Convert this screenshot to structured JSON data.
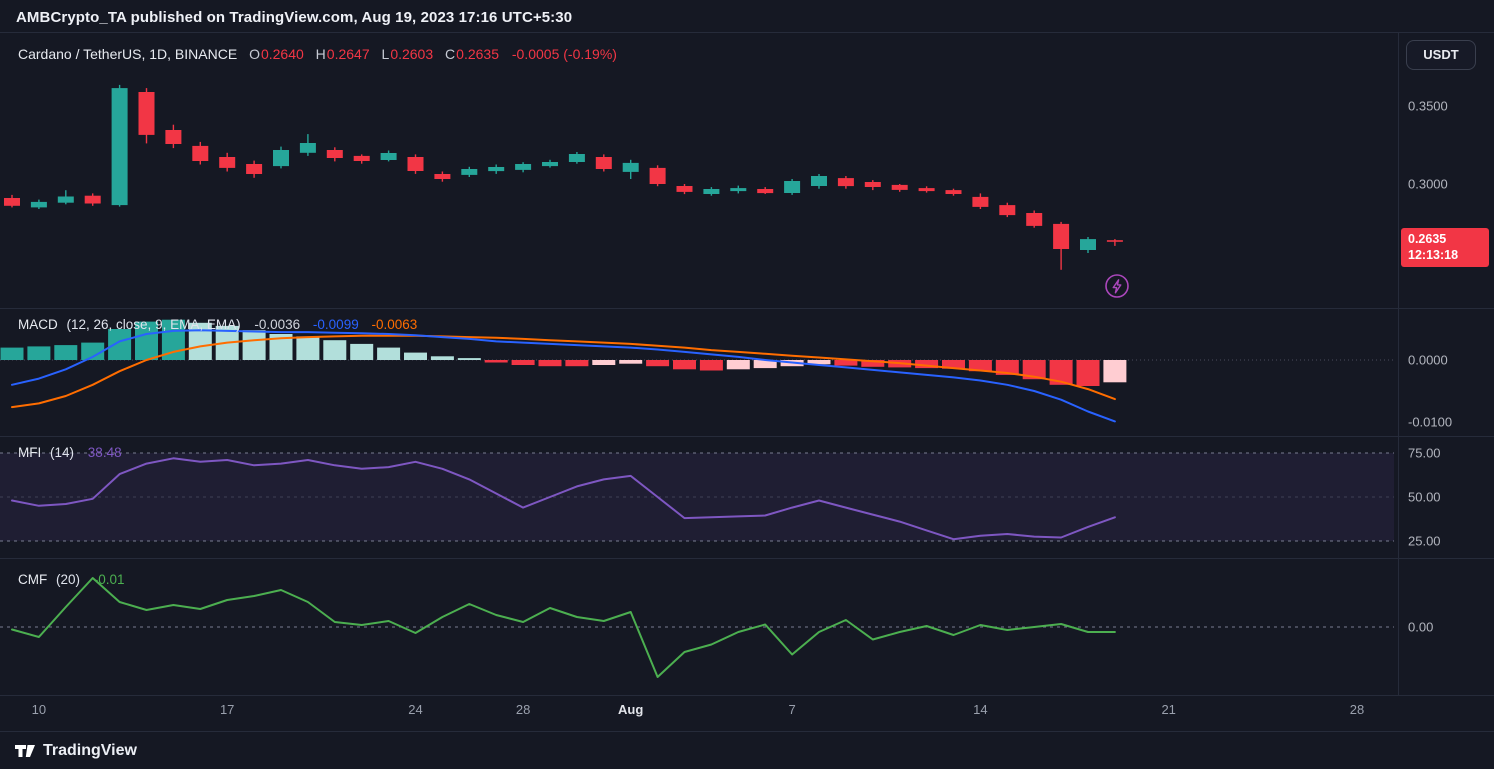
{
  "header": {
    "title": "AMBCrypto_TA published on TradingView.com, Aug 19, 2023 17:16 UTC+5:30"
  },
  "toolbar": {
    "currency_label": "USDT"
  },
  "footer": {
    "brand": "TradingView"
  },
  "colors": {
    "background": "#151823",
    "up": "#26a69a",
    "down": "#f23645",
    "macd_line": "#2962ff",
    "signal_line": "#ff6d00",
    "hist_above_rising": "#26a69a",
    "hist_above_falling": "#b2dfdb",
    "hist_below_falling": "#f23645",
    "hist_below_rising": "#ffcdd2",
    "mfi_line": "#7e57c2",
    "mfi_band": "#7e57c2",
    "cmf_line": "#4caf50",
    "badge_bg": "#f23645",
    "boost_icon": "#ab47bc",
    "axis_text": "#b2b5be",
    "grid_dash": "#8b8fa3"
  },
  "chart_data": [
    {
      "type": "candlestick",
      "title": "Cardano / TetherUS, 1D, BINANCE",
      "ohlc_labels": {
        "o": "O",
        "h": "H",
        "l": "L",
        "c": "C"
      },
      "ohlc_display": {
        "o": "0.2640",
        "h": "0.2647",
        "l": "0.2603",
        "c": "0.2635",
        "change": "-0.0005 (-0.19%)"
      },
      "y_ticks": [
        {
          "value": 0.35,
          "label": "0.3500"
        },
        {
          "value": 0.3,
          "label": "0.3000"
        }
      ],
      "last_price": {
        "value": 0.2635,
        "label": "0.2635",
        "countdown": "12:13:18"
      },
      "x_ticks": [
        {
          "label": "10",
          "index": 1
        },
        {
          "label": "17",
          "index": 8
        },
        {
          "label": "24",
          "index": 15
        },
        {
          "label": "28",
          "index": 19
        },
        {
          "label": "Aug",
          "index": 23,
          "emphasis": true
        },
        {
          "label": "7",
          "index": 29
        },
        {
          "label": "14",
          "index": 36
        },
        {
          "label": "21",
          "index": 43
        },
        {
          "label": "28",
          "index": 50
        }
      ],
      "candles_ohlc": [
        [
          0.291,
          0.293,
          0.285,
          0.286
        ],
        [
          0.285,
          0.29,
          0.284,
          0.2885
        ],
        [
          0.288,
          0.296,
          0.287,
          0.292
        ],
        [
          0.2925,
          0.294,
          0.286,
          0.2875
        ],
        [
          0.2865,
          0.3635,
          0.2855,
          0.3615
        ],
        [
          0.359,
          0.3615,
          0.326,
          0.3315
        ],
        [
          0.3346,
          0.338,
          0.323,
          0.3256
        ],
        [
          0.3244,
          0.327,
          0.3125,
          0.3147
        ],
        [
          0.3173,
          0.32,
          0.308,
          0.3103
        ],
        [
          0.3128,
          0.315,
          0.304,
          0.3064
        ],
        [
          0.3115,
          0.324,
          0.31,
          0.3218
        ],
        [
          0.32,
          0.332,
          0.318,
          0.3263
        ],
        [
          0.3218,
          0.3235,
          0.3145,
          0.3167
        ],
        [
          0.318,
          0.319,
          0.313,
          0.3147
        ],
        [
          0.3154,
          0.3215,
          0.3145,
          0.3199
        ],
        [
          0.3173,
          0.319,
          0.3065,
          0.3083
        ],
        [
          0.3064,
          0.308,
          0.3015,
          0.3032
        ],
        [
          0.3058,
          0.311,
          0.3045,
          0.3096
        ],
        [
          0.3083,
          0.3125,
          0.3065,
          0.3109
        ],
        [
          0.309,
          0.314,
          0.3075,
          0.3128
        ],
        [
          0.3115,
          0.3155,
          0.3105,
          0.3141
        ],
        [
          0.3141,
          0.3205,
          0.313,
          0.3192
        ],
        [
          0.3173,
          0.319,
          0.308,
          0.3096
        ],
        [
          0.3077,
          0.3155,
          0.3032,
          0.3135
        ],
        [
          0.3103,
          0.312,
          0.2986,
          0.3
        ],
        [
          0.2987,
          0.3,
          0.2935,
          0.2949
        ],
        [
          0.2936,
          0.298,
          0.2925,
          0.2968
        ],
        [
          0.2955,
          0.299,
          0.294,
          0.2974
        ],
        [
          0.2968,
          0.298,
          0.2936,
          0.2942
        ],
        [
          0.2942,
          0.3032,
          0.293,
          0.3019
        ],
        [
          0.2987,
          0.3064,
          0.297,
          0.3051
        ],
        [
          0.3038,
          0.3051,
          0.297,
          0.2987
        ],
        [
          0.3013,
          0.3025,
          0.2961,
          0.2981
        ],
        [
          0.2994,
          0.3,
          0.295,
          0.2962
        ],
        [
          0.2974,
          0.2985,
          0.2945,
          0.2955
        ],
        [
          0.2961,
          0.297,
          0.2925,
          0.2936
        ],
        [
          0.2917,
          0.294,
          0.284,
          0.2853
        ],
        [
          0.2865,
          0.288,
          0.2788,
          0.2801
        ],
        [
          0.2814,
          0.283,
          0.272,
          0.2731
        ],
        [
          0.2744,
          0.2757,
          0.245,
          0.2583
        ],
        [
          0.2577,
          0.266,
          0.2558,
          0.2647
        ],
        [
          0.264,
          0.2647,
          0.2603,
          0.2635
        ]
      ]
    },
    {
      "type": "macd",
      "title": "MACD",
      "params": "(12, 26, close, 9, EMA, EMA)",
      "values_display": {
        "hist": "-0.0036",
        "macd": "-0.0099",
        "signal": "-0.0063"
      },
      "y_ticks": [
        {
          "value": 0,
          "label": "0.0000"
        },
        {
          "value": -0.01,
          "label": "-0.0100"
        }
      ],
      "hist": [
        0.002,
        0.0022,
        0.0024,
        0.0028,
        0.005,
        0.0062,
        0.0065,
        0.006,
        0.0055,
        0.0048,
        0.0042,
        0.0038,
        0.0032,
        0.0026,
        0.002,
        0.0012,
        0.0006,
        0.0003,
        -0.0004,
        -0.0008,
        -0.001,
        -0.001,
        -0.0008,
        -0.0006,
        -0.001,
        -0.0015,
        -0.0017,
        -0.0015,
        -0.0013,
        -0.001,
        -0.0007,
        -0.0009,
        -0.0011,
        -0.0012,
        -0.0013,
        -0.0014,
        -0.0018,
        -0.0024,
        -0.0031,
        -0.004,
        -0.0042,
        -0.0036
      ],
      "macd_line": [
        -0.004,
        -0.003,
        -0.0015,
        0.0005,
        0.003,
        0.0042,
        0.0047,
        0.0048,
        0.0047,
        0.0046,
        0.0045,
        0.0045,
        0.0044,
        0.0043,
        0.0042,
        0.004,
        0.0037,
        0.0034,
        0.003,
        0.0028,
        0.0026,
        0.0024,
        0.0022,
        0.002,
        0.0017,
        0.0013,
        0.0009,
        0.0005,
        0.0,
        -0.0004,
        -0.0008,
        -0.0012,
        -0.0016,
        -0.002,
        -0.0024,
        -0.0028,
        -0.0033,
        -0.004,
        -0.005,
        -0.0064,
        -0.0083,
        -0.0099
      ],
      "signal_line": [
        -0.0076,
        -0.007,
        -0.0058,
        -0.004,
        -0.0018,
        0.0,
        0.0013,
        0.0022,
        0.0028,
        0.0032,
        0.0035,
        0.0037,
        0.0038,
        0.0039,
        0.0039,
        0.0039,
        0.0038,
        0.0037,
        0.0036,
        0.0034,
        0.0032,
        0.003,
        0.0028,
        0.0026,
        0.0023,
        0.002,
        0.0016,
        0.0013,
        0.001,
        0.0007,
        0.0004,
        0.0001,
        -0.0002,
        -0.0005,
        -0.0009,
        -0.0013,
        -0.0017,
        -0.0021,
        -0.0027,
        -0.0035,
        -0.0047,
        -0.0063
      ]
    },
    {
      "type": "line",
      "title": "MFI",
      "params": "(14)",
      "value_display": "38.48",
      "y_ticks": [
        {
          "value": 75,
          "label": "75.00"
        },
        {
          "value": 50,
          "label": "50.00"
        },
        {
          "value": 25,
          "label": "25.00"
        }
      ],
      "band": [
        75,
        25
      ],
      "values": [
        48,
        45,
        46,
        49,
        63,
        69,
        72,
        70,
        71,
        68,
        69,
        71,
        68,
        66,
        67,
        70,
        66,
        60,
        52,
        44,
        50,
        56,
        60,
        62,
        50,
        38,
        38.5,
        39,
        39.5,
        44,
        48,
        44,
        40,
        36,
        31,
        26,
        28,
        29,
        27.5,
        27,
        33,
        38.48
      ]
    },
    {
      "type": "line",
      "title": "CMF",
      "params": "(20)",
      "value_display": "-0.01",
      "y_ticks": [
        {
          "value": 0,
          "label": "0.00"
        }
      ],
      "values": [
        -0.005,
        -0.02,
        0.04,
        0.098,
        0.05,
        0.034,
        0.044,
        0.036,
        0.054,
        0.062,
        0.074,
        0.05,
        0.01,
        0.004,
        0.012,
        -0.012,
        0.02,
        0.046,
        0.024,
        0.01,
        0.038,
        0.02,
        0.012,
        0.03,
        -0.1,
        -0.05,
        -0.035,
        -0.01,
        0.005,
        -0.055,
        -0.01,
        0.014,
        -0.025,
        -0.01,
        0.002,
        -0.016,
        0.004,
        -0.006,
        0,
        0.006,
        -0.01,
        -0.01
      ]
    }
  ]
}
